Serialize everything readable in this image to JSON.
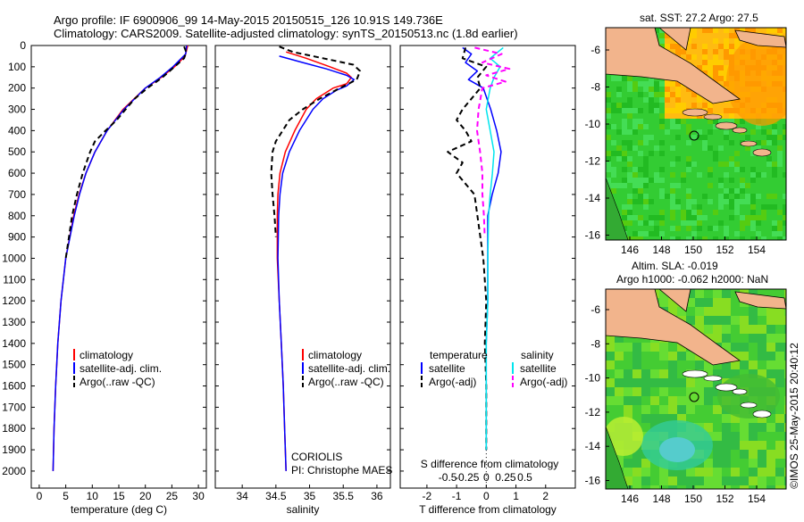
{
  "header": {
    "title_line1": "Argo profile: IF 6900906_99 14-May-2015 20150515_126 10.91S 149.736E",
    "title_line2": "Climatology: CARS2009. Satellite-adjusted climatology: synTS_20150513.nc (1.8d earlier)"
  },
  "footer": {
    "credit": "©IMOS 25-May-2015 20:40:12",
    "institution": "CORIOLIS",
    "pi": "PI: Christophe MAES"
  },
  "colors": {
    "climatology": "#ff0000",
    "satellite": "#0000ff",
    "argo": "#000000",
    "satellite_salinity": "#00e5ee",
    "argo_salinity_diff": "#ff00ff",
    "land": "#f2b48c",
    "ocean_green": "#33cc33",
    "ocean_light": "#66dd44",
    "warm": "#ffaa00"
  },
  "chart_data": [
    {
      "type": "line",
      "title": "",
      "xlabel": "temperature (deg C)",
      "ylabel": "",
      "xlim": [
        -1.5,
        31.5
      ],
      "ylim": [
        2080,
        0
      ],
      "x_ticks": [
        0,
        5,
        10,
        15,
        20,
        25,
        30
      ],
      "y_ticks": [
        0,
        100,
        200,
        300,
        400,
        500,
        600,
        700,
        800,
        900,
        1000,
        1100,
        1200,
        1300,
        1400,
        1500,
        1600,
        1700,
        1800,
        1900,
        2000
      ],
      "legend": [
        "climatology",
        "satellite-adj. clim.",
        "Argo(..raw -QC)"
      ],
      "series": [
        {
          "name": "climatology",
          "style": "solid",
          "depth": [
            0,
            50,
            100,
            150,
            200,
            300,
            400,
            500,
            600,
            700,
            800,
            1000,
            1200,
            1400,
            1600,
            1800,
            2000
          ],
          "values": [
            28.0,
            27.5,
            25.5,
            23.0,
            20.0,
            15.8,
            12.8,
            10.5,
            8.8,
            7.5,
            6.5,
            5.0,
            4.1,
            3.5,
            3.1,
            2.8,
            2.6
          ]
        },
        {
          "name": "satellite-adj. clim.",
          "style": "solid",
          "depth": [
            0,
            40,
            100,
            150,
            200,
            300,
            400,
            500,
            600,
            700,
            800,
            1000,
            1200,
            1400,
            1600,
            1800,
            2000
          ],
          "values": [
            27.8,
            27.6,
            25.2,
            22.8,
            20.0,
            16.0,
            12.8,
            10.5,
            8.8,
            7.6,
            6.6,
            5.0,
            4.1,
            3.5,
            3.1,
            2.8,
            2.6
          ]
        },
        {
          "name": "Argo(..raw -QC)",
          "style": "dashed",
          "depth": [
            5,
            30,
            60,
            100,
            150,
            200,
            250,
            300,
            350,
            400,
            450,
            500,
            600,
            700,
            800,
            900,
            1000
          ],
          "values": [
            27.3,
            27.7,
            27.3,
            25.5,
            23.2,
            20.4,
            18.0,
            16.3,
            14.6,
            12.5,
            10.5,
            9.6,
            8.2,
            7.1,
            6.2,
            5.6,
            5.0
          ]
        }
      ]
    },
    {
      "type": "line",
      "title": "",
      "xlabel": "salinity",
      "ylabel": "",
      "xlim": [
        33.6,
        36.2
      ],
      "ylim": [
        2080,
        0
      ],
      "x_ticks": [
        34,
        34.5,
        35,
        35.5,
        36
      ],
      "legend": [
        "climatology",
        "satellite-adj. clim.",
        "Argo(..raw -QC)"
      ],
      "series": [
        {
          "name": "climatology",
          "style": "solid",
          "depth": [
            30,
            60,
            100,
            130,
            150,
            180,
            200,
            250,
            300,
            400,
            500,
            600,
            700,
            800,
            1000,
            1200,
            1400,
            1600,
            1800,
            2000
          ],
          "values": [
            34.65,
            34.95,
            35.3,
            35.55,
            35.62,
            35.55,
            35.35,
            35.1,
            34.95,
            34.78,
            34.64,
            34.56,
            34.53,
            34.52,
            34.52,
            34.55,
            34.58,
            34.61,
            34.63,
            34.65
          ]
        },
        {
          "name": "satellite-adj. clim.",
          "style": "solid",
          "depth": [
            50,
            80,
            110,
            140,
            160,
            190,
            210,
            250,
            300,
            400,
            500,
            600,
            700,
            800,
            1000,
            1200,
            1400,
            1600,
            1800,
            2000
          ],
          "values": [
            34.55,
            34.9,
            35.25,
            35.55,
            35.66,
            35.55,
            35.4,
            35.2,
            35.05,
            34.85,
            34.7,
            34.6,
            34.56,
            34.54,
            34.53,
            34.55,
            34.58,
            34.61,
            34.63,
            34.65
          ]
        },
        {
          "name": "Argo(..raw -QC)",
          "style": "dashed",
          "depth": [
            5,
            30,
            60,
            90,
            120,
            160,
            200,
            250,
            300,
            350,
            400,
            450,
            500,
            600,
            700,
            800,
            900
          ],
          "values": [
            34.55,
            34.75,
            35.2,
            35.65,
            35.75,
            35.7,
            35.45,
            35.15,
            34.9,
            34.7,
            34.6,
            34.5,
            34.45,
            34.43,
            34.45,
            34.48,
            34.5
          ]
        }
      ]
    },
    {
      "type": "line",
      "title": "",
      "xlabel": "T difference from climatology",
      "xlabel_top": "S difference from climatology",
      "ylabel": "",
      "xlim": [
        -2.9,
        3.0
      ],
      "ylim": [
        2080,
        0
      ],
      "x_ticks": [
        -2,
        -1,
        0,
        1,
        2
      ],
      "s_ticks": [
        -0.5,
        -0.25,
        0,
        0.25,
        0.5
      ],
      "s_tick_labels": [
        "-0.5",
        "-0.25",
        "0",
        "0.25",
        "0.5"
      ],
      "legend_headers": [
        "temperature",
        "salinity"
      ],
      "legend": [
        "satellite",
        "Argo(-adj)",
        "satellite",
        "Argo(-adj)"
      ],
      "series": [
        {
          "name": "temperature satellite",
          "style": "solid",
          "units": "deg C",
          "depth": [
            10,
            40,
            80,
            120,
            160,
            200,
            300,
            400,
            500,
            600,
            700,
            800,
            1000,
            1200,
            1400,
            1600,
            1800,
            1900
          ],
          "values": [
            -0.8,
            -0.5,
            -0.7,
            -0.3,
            -0.6,
            -0.1,
            0.15,
            0.35,
            0.5,
            0.4,
            0.2,
            0.05,
            0.05,
            0.05,
            0.0,
            0.0,
            0.0,
            0.0
          ]
        },
        {
          "name": "temperature Argo(-adj)",
          "style": "dashed",
          "units": "deg C",
          "depth": [
            10,
            60,
            100,
            150,
            200,
            300,
            350,
            400,
            450,
            500,
            550,
            600,
            700,
            800,
            900,
            1000,
            1200,
            1400,
            1600,
            1800,
            1900
          ],
          "values": [
            -0.7,
            -0.8,
            0.0,
            -0.3,
            -0.2,
            -0.8,
            -1.0,
            -0.7,
            -0.5,
            -1.3,
            -0.8,
            -1.0,
            -0.4,
            -0.3,
            -0.2,
            -0.1,
            0.0,
            -0.05,
            0.0,
            0.0,
            0.0
          ]
        },
        {
          "name": "salinity satellite",
          "style": "solid",
          "units": "psu",
          "depth": [
            10,
            60,
            100,
            150,
            200,
            300,
            400,
            500,
            600,
            700,
            800,
            1000,
            1200,
            1400,
            1600,
            1800,
            1900
          ],
          "values": [
            0.22,
            0.05,
            0.18,
            0.1,
            0.05,
            0.0,
            0.05,
            0.1,
            0.08,
            0.05,
            0.03,
            0.02,
            0.02,
            0.0,
            0.0,
            0.0,
            0.0
          ]
        },
        {
          "name": "salinity Argo(-adj)",
          "style": "dashed",
          "units": "psu",
          "depth": [
            10,
            40,
            80,
            110,
            140,
            170,
            200,
            300,
            400,
            500,
            600,
            700,
            800,
            900
          ],
          "values": [
            -0.15,
            0.2,
            -0.05,
            0.3,
            0.0,
            0.25,
            -0.05,
            -0.1,
            -0.12,
            -0.08,
            -0.05,
            -0.05,
            -0.03,
            -0.02
          ]
        }
      ]
    },
    {
      "type": "heatmap",
      "title": "sat. SST: 27.2 Argo: 27.5",
      "x_tick_labels": [
        "146",
        "148",
        "150",
        "152",
        "154"
      ],
      "y_tick_labels": [
        "-6",
        "-8",
        "-10",
        "-12",
        "-14",
        "-16"
      ],
      "marker": {
        "lon": 149.736,
        "lat": -10.91
      }
    },
    {
      "type": "heatmap",
      "title": "Altim. SLA: -0.019",
      "subtitle": "Argo h1000: -0.062 h2000: NaN",
      "x_tick_labels": [
        "146",
        "148",
        "150",
        "152",
        "154"
      ],
      "y_tick_labels": [
        "-6",
        "-8",
        "-10",
        "-12",
        "-14",
        "-16"
      ],
      "marker": {
        "lon": 149.736,
        "lat": -10.91
      }
    }
  ]
}
